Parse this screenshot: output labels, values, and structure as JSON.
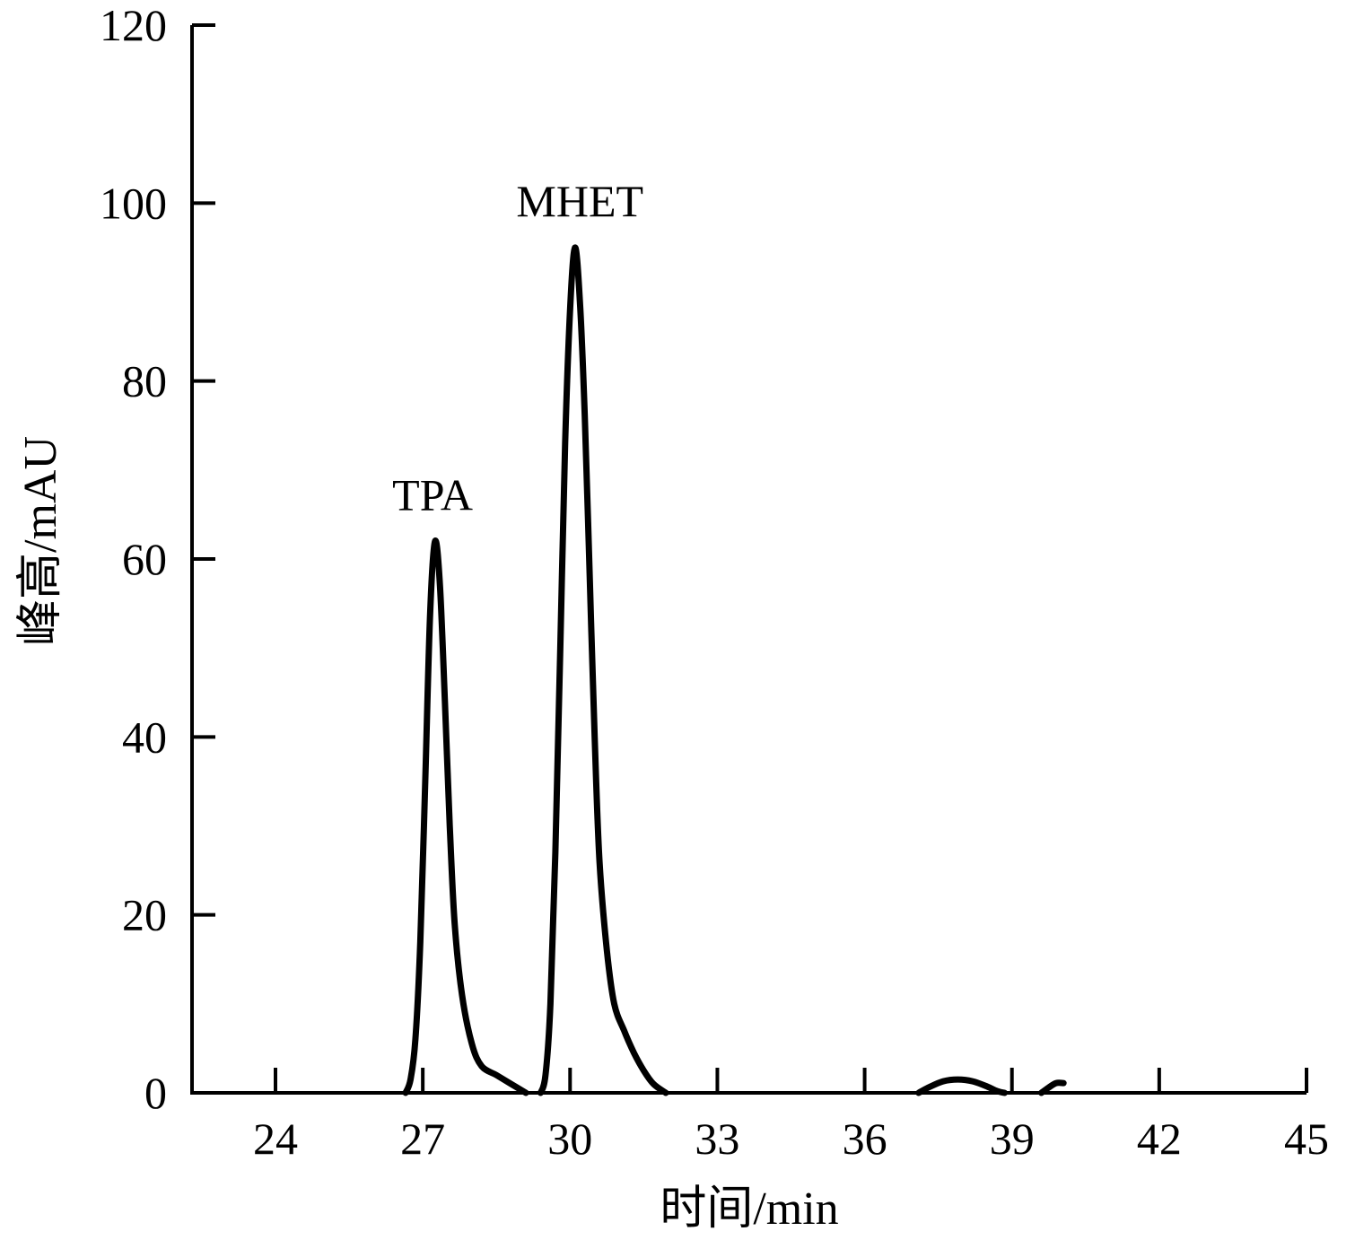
{
  "chart_data": {
    "type": "line",
    "xlabel": "时间/min",
    "ylabel": "峰高/mAU",
    "xlim": [
      22.3,
      45
    ],
    "ylim": [
      0,
      120
    ],
    "x_ticks": [
      24,
      27,
      30,
      33,
      36,
      39,
      42,
      45
    ],
    "y_ticks": [
      0,
      20,
      40,
      60,
      80,
      100,
      120
    ],
    "grid": false,
    "line_color": "#000000",
    "annotations": [
      {
        "text": "TPA",
        "x": 27.2,
        "y": 65.5
      },
      {
        "text": "MHET",
        "x": 30.2,
        "y": 98.5
      }
    ],
    "series": [
      {
        "points": [
          [
            26.65,
            0
          ],
          [
            26.75,
            1.5
          ],
          [
            26.85,
            6
          ],
          [
            26.95,
            17
          ],
          [
            27.05,
            35
          ],
          [
            27.15,
            54
          ],
          [
            27.25,
            62
          ],
          [
            27.35,
            57
          ],
          [
            27.45,
            44
          ],
          [
            27.55,
            30
          ],
          [
            27.65,
            19
          ],
          [
            27.8,
            11
          ],
          [
            28.0,
            5.5
          ],
          [
            28.2,
            3
          ],
          [
            28.5,
            2
          ],
          [
            28.8,
            1
          ],
          [
            29.1,
            0
          ]
        ]
      },
      {
        "points": [
          [
            29.4,
            0
          ],
          [
            29.5,
            2
          ],
          [
            29.6,
            10
          ],
          [
            29.7,
            27
          ],
          [
            29.8,
            50
          ],
          [
            29.9,
            73
          ],
          [
            30.0,
            88
          ],
          [
            30.1,
            95
          ],
          [
            30.2,
            89
          ],
          [
            30.3,
            76
          ],
          [
            30.4,
            58
          ],
          [
            30.5,
            40
          ],
          [
            30.6,
            26
          ],
          [
            30.75,
            16
          ],
          [
            30.9,
            10
          ],
          [
            31.1,
            7
          ],
          [
            31.3,
            4.5
          ],
          [
            31.5,
            2.5
          ],
          [
            31.7,
            1
          ],
          [
            31.95,
            0
          ]
        ]
      },
      {
        "points": [
          [
            37.1,
            0
          ],
          [
            37.3,
            0.6
          ],
          [
            37.6,
            1.3
          ],
          [
            37.9,
            1.5
          ],
          [
            38.2,
            1.3
          ],
          [
            38.5,
            0.7
          ],
          [
            38.7,
            0.2
          ],
          [
            38.85,
            0
          ]
        ]
      },
      {
        "points": [
          [
            39.6,
            0
          ],
          [
            39.75,
            0.6
          ],
          [
            39.9,
            1.1
          ],
          [
            40.05,
            1.1
          ]
        ]
      }
    ]
  }
}
